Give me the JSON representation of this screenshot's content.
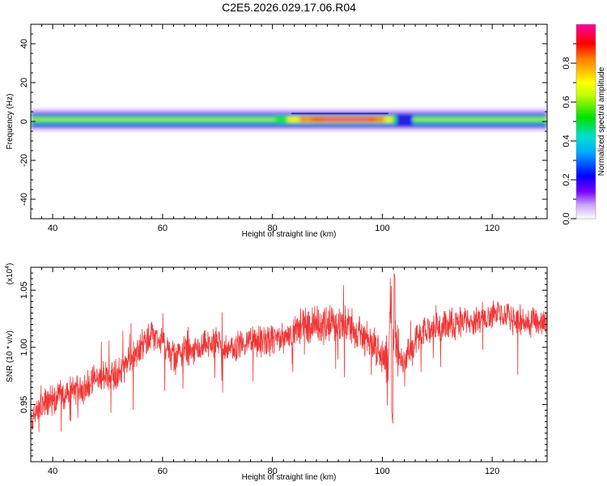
{
  "chart_data": [
    {
      "type": "heatmap",
      "title": "C2E5.2026.029.17.06.R04",
      "xlabel": "Height of straight line (km)",
      "ylabel": "Frequency (Hz)",
      "xlim": [
        36,
        130
      ],
      "ylim": [
        -50,
        50
      ],
      "xticks": [
        "40",
        "60",
        "80",
        "100",
        "120"
      ],
      "yticks": [
        "40",
        "20",
        "0",
        "-20",
        "-40"
      ],
      "colorbar": {
        "label": "Normalized spectral amplitude",
        "range": [
          0.0,
          1.0
        ],
        "ticks": [
          "0.0",
          "0.2",
          "0.4",
          "0.6",
          "0.8"
        ]
      },
      "band": {
        "center_hz": 0,
        "half_width_hz": 5,
        "peak_region_km": [
          86,
          100
        ],
        "peak_amplitude": 0.98
      },
      "grid": false
    },
    {
      "type": "line",
      "xlabel": "Height of straight line (km)",
      "ylabel": "SNR (10 * v/v)",
      "scale_label": "(x10",
      "scale_exp": "4",
      "xlim": [
        36,
        130
      ],
      "ylim": [
        0.9,
        1.07
      ],
      "xticks": [
        "40",
        "60",
        "80",
        "100",
        "120"
      ],
      "yticks": [
        "1.05",
        "1.00",
        "0.95"
      ],
      "series": [
        {
          "color": "#f03535",
          "x": [
            36,
            38,
            40,
            42,
            44,
            46,
            48,
            50,
            52,
            54,
            56,
            58,
            60,
            62,
            64,
            66,
            68,
            70,
            72,
            74,
            76,
            78,
            80,
            82,
            84,
            86,
            88,
            90,
            92,
            94,
            96,
            98,
            100,
            101,
            101.5,
            102,
            103,
            104,
            106,
            108,
            110,
            112,
            114,
            116,
            118,
            120,
            122,
            124,
            126,
            128,
            130
          ],
          "values": [
            0.935,
            0.948,
            0.955,
            0.958,
            0.962,
            0.966,
            0.972,
            0.975,
            0.978,
            0.988,
            0.998,
            1.012,
            1.004,
            0.992,
            0.996,
            0.995,
            1.002,
            1.004,
            0.997,
            1.003,
            1.006,
            1.004,
            1.006,
            1.008,
            1.014,
            1.02,
            1.018,
            1.022,
            1.018,
            1.02,
            1.01,
            1.006,
            0.99,
            0.985,
            1.045,
            1.018,
            0.995,
            0.99,
            1.005,
            1.013,
            1.018,
            1.02,
            1.022,
            1.024,
            1.026,
            1.03,
            1.028,
            1.025,
            1.022,
            1.02,
            1.02
          ]
        }
      ],
      "grid": false
    }
  ]
}
